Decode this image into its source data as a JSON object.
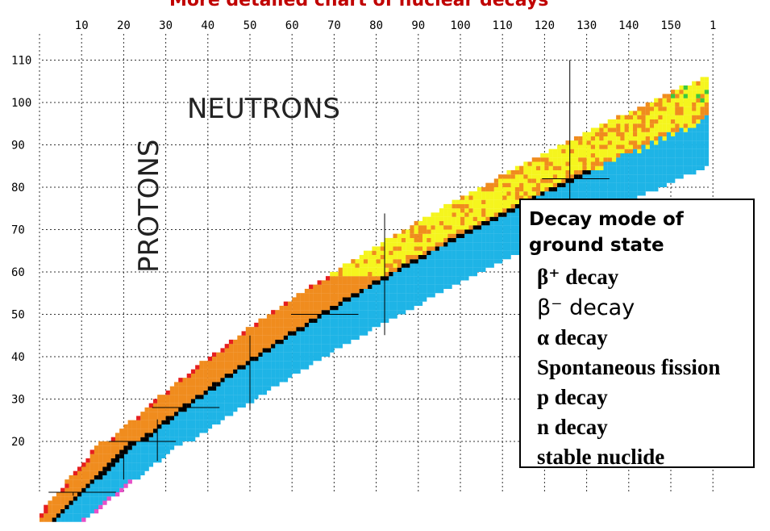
{
  "chart_data": {
    "type": "heatmap",
    "title": "More detailed chart of nuclear decays",
    "xlabel": "NEUTRONS",
    "ylabel": "PROTONS",
    "x_ticks": [
      "10",
      "20",
      "30",
      "40",
      "50",
      "60",
      "70",
      "80",
      "90",
      "100",
      "110",
      "120",
      "130",
      "140",
      "150",
      "1"
    ],
    "y_ticks": [
      "110",
      "100",
      "90",
      "80",
      "70",
      "60",
      "50",
      "40",
      "30",
      "20"
    ],
    "xlim": [
      0,
      160
    ],
    "ylim": [
      8,
      110
    ],
    "x_axis_position": "top",
    "grid": true,
    "legend_position": "right",
    "magic_numbers": [
      8,
      20,
      28,
      50,
      82,
      126
    ],
    "legend": {
      "title": "Decay mode of ground state",
      "items": [
        {
          "label": "β⁺ decay",
          "color": "#f08c1e"
        },
        {
          "label": "β⁻ decay",
          "color": "#1eb4e6"
        },
        {
          "label": "α decay",
          "color": "#f5f51e"
        },
        {
          "label": "Spontaneous fission",
          "color": "#3cc83c"
        },
        {
          "label": "p decay",
          "color": "#e61e1e"
        },
        {
          "label": "n decay",
          "color": "#e650c8"
        },
        {
          "label": "stable nuclide",
          "color": "#000000"
        }
      ]
    }
  }
}
